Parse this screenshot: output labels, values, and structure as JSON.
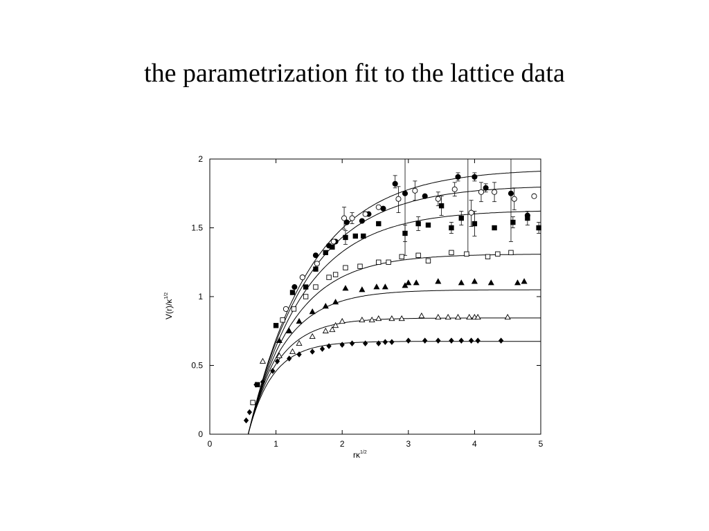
{
  "slide": {
    "title": "the parametrization fit to the lattice data"
  },
  "chart_data": {
    "type": "scatter",
    "title": "",
    "xlabel": "rκ",
    "xlabel_sup": "1/2",
    "ylabel": "V(r)/κ",
    "ylabel_sup": "1/2",
    "xlim": [
      0,
      5
    ],
    "ylim": [
      0,
      2
    ],
    "xticks": [
      "0",
      "1",
      "2",
      "3",
      "4",
      "5"
    ],
    "yticks": [
      "0",
      "0.5",
      "1",
      "1.5",
      "2"
    ],
    "xtick_values": [
      0,
      1,
      2,
      3,
      4,
      5
    ],
    "ytick_values": [
      0,
      0.5,
      1,
      1.5,
      2
    ],
    "grid": false,
    "fit_curves": [
      {
        "asymptote": 1.93,
        "x0": 0.58,
        "rate": 1.05
      },
      {
        "asymptote": 1.81,
        "x0": 0.58,
        "rate": 1.1
      },
      {
        "asymptote": 1.63,
        "x0": 0.58,
        "rate": 1.18
      },
      {
        "asymptote": 1.31,
        "x0": 0.58,
        "rate": 1.45
      },
      {
        "asymptote": 1.05,
        "x0": 0.58,
        "rate": 1.8
      },
      {
        "asymptote": 0.845,
        "x0": 0.58,
        "rate": 2.2
      },
      {
        "asymptote": 0.675,
        "x0": 0.58,
        "rate": 2.7
      }
    ],
    "series": [
      {
        "marker": "filled-circle",
        "points": [
          [
            1.28,
            1.07
          ],
          [
            1.4,
            1.14
          ],
          [
            1.6,
            1.3
          ],
          [
            1.8,
            1.37
          ],
          [
            1.9,
            1.4
          ],
          [
            2.07,
            1.54
          ],
          [
            2.3,
            1.55
          ],
          [
            2.4,
            1.6
          ],
          [
            2.62,
            1.64
          ],
          [
            2.8,
            1.82
          ],
          [
            2.95,
            1.75
          ],
          [
            3.25,
            1.73
          ],
          [
            3.75,
            1.87
          ],
          [
            4.0,
            1.87
          ],
          [
            4.17,
            1.79
          ],
          [
            4.55,
            1.75
          ],
          [
            4.8,
            1.59
          ]
        ]
      },
      {
        "marker": "open-circle",
        "points": [
          [
            1.15,
            0.91
          ],
          [
            1.4,
            1.14
          ],
          [
            1.62,
            1.24
          ],
          [
            1.87,
            1.4
          ],
          [
            2.03,
            1.57
          ],
          [
            2.15,
            1.57
          ],
          [
            2.35,
            1.6
          ],
          [
            2.55,
            1.65
          ],
          [
            2.85,
            1.71
          ],
          [
            3.1,
            1.77
          ],
          [
            3.45,
            1.71
          ],
          [
            3.7,
            1.78
          ],
          [
            3.95,
            1.61
          ],
          [
            4.1,
            1.76
          ],
          [
            4.3,
            1.76
          ],
          [
            4.6,
            1.71
          ],
          [
            4.9,
            1.73
          ]
        ]
      },
      {
        "marker": "filled-square",
        "points": [
          [
            0.72,
            0.36
          ],
          [
            1.0,
            0.79
          ],
          [
            1.25,
            1.03
          ],
          [
            1.45,
            1.07
          ],
          [
            1.6,
            1.2
          ],
          [
            1.75,
            1.32
          ],
          [
            1.85,
            1.36
          ],
          [
            2.05,
            1.43
          ],
          [
            2.2,
            1.44
          ],
          [
            2.32,
            1.44
          ],
          [
            2.55,
            1.53
          ],
          [
            2.95,
            1.46
          ],
          [
            3.15,
            1.53
          ],
          [
            3.3,
            1.52
          ],
          [
            3.5,
            1.66
          ],
          [
            3.65,
            1.5
          ],
          [
            3.8,
            1.57
          ],
          [
            4.0,
            1.53
          ],
          [
            4.3,
            1.5
          ],
          [
            4.58,
            1.54
          ],
          [
            4.8,
            1.57
          ],
          [
            4.97,
            1.5
          ]
        ]
      },
      {
        "marker": "open-square",
        "points": [
          [
            0.65,
            0.23
          ],
          [
            1.1,
            0.83
          ],
          [
            1.27,
            0.91
          ],
          [
            1.45,
            1.0
          ],
          [
            1.6,
            1.07
          ],
          [
            1.8,
            1.14
          ],
          [
            1.9,
            1.16
          ],
          [
            2.05,
            1.21
          ],
          [
            2.27,
            1.22
          ],
          [
            2.55,
            1.25
          ],
          [
            2.7,
            1.25
          ],
          [
            2.9,
            1.29
          ],
          [
            3.15,
            1.3
          ],
          [
            3.3,
            1.26
          ],
          [
            3.65,
            1.32
          ],
          [
            3.88,
            1.31
          ],
          [
            4.2,
            1.29
          ],
          [
            4.35,
            1.31
          ],
          [
            4.55,
            1.32
          ]
        ]
      },
      {
        "marker": "filled-triangle",
        "points": [
          [
            1.05,
            0.68
          ],
          [
            1.2,
            0.75
          ],
          [
            1.35,
            0.82
          ],
          [
            1.55,
            0.89
          ],
          [
            1.75,
            0.93
          ],
          [
            1.9,
            0.96
          ],
          [
            2.05,
            1.06
          ],
          [
            2.3,
            1.05
          ],
          [
            2.52,
            1.07
          ],
          [
            2.65,
            1.07
          ],
          [
            2.95,
            1.08
          ],
          [
            3.0,
            1.1
          ],
          [
            3.12,
            1.1
          ],
          [
            3.45,
            1.11
          ],
          [
            3.8,
            1.1
          ],
          [
            4.0,
            1.11
          ],
          [
            4.25,
            1.1
          ],
          [
            4.65,
            1.1
          ],
          [
            4.75,
            1.11
          ]
        ]
      },
      {
        "marker": "open-triangle",
        "points": [
          [
            0.8,
            0.53
          ],
          [
            1.05,
            0.57
          ],
          [
            1.25,
            0.6
          ],
          [
            1.35,
            0.66
          ],
          [
            1.55,
            0.71
          ],
          [
            1.75,
            0.75
          ],
          [
            1.85,
            0.76
          ],
          [
            1.9,
            0.79
          ],
          [
            2.0,
            0.82
          ],
          [
            2.3,
            0.83
          ],
          [
            2.45,
            0.83
          ],
          [
            2.55,
            0.84
          ],
          [
            2.75,
            0.84
          ],
          [
            2.9,
            0.84
          ],
          [
            3.2,
            0.86
          ],
          [
            3.45,
            0.85
          ],
          [
            3.6,
            0.85
          ],
          [
            3.75,
            0.85
          ],
          [
            3.92,
            0.85
          ],
          [
            4.0,
            0.85
          ],
          [
            4.05,
            0.85
          ],
          [
            4.5,
            0.85
          ]
        ]
      },
      {
        "marker": "filled-diamond",
        "points": [
          [
            0.55,
            0.1
          ],
          [
            0.6,
            0.16
          ],
          [
            0.7,
            0.36
          ],
          [
            0.8,
            0.38
          ],
          [
            0.95,
            0.46
          ],
          [
            1.02,
            0.53
          ],
          [
            1.2,
            0.55
          ],
          [
            1.35,
            0.58
          ],
          [
            1.55,
            0.6
          ],
          [
            1.7,
            0.62
          ],
          [
            1.8,
            0.64
          ],
          [
            2.0,
            0.65
          ],
          [
            2.15,
            0.66
          ],
          [
            2.35,
            0.66
          ],
          [
            2.55,
            0.66
          ],
          [
            2.65,
            0.67
          ],
          [
            2.75,
            0.67
          ],
          [
            3.0,
            0.68
          ],
          [
            3.25,
            0.68
          ],
          [
            3.45,
            0.68
          ],
          [
            3.65,
            0.68
          ],
          [
            3.8,
            0.68
          ],
          [
            3.95,
            0.68
          ],
          [
            4.05,
            0.68
          ],
          [
            4.4,
            0.68
          ]
        ]
      }
    ],
    "errorbars": [
      [
        2.8,
        1.79,
        1.88
      ],
      [
        3.75,
        1.84,
        1.9
      ],
      [
        4.0,
        1.84,
        1.9
      ],
      [
        4.17,
        1.76,
        1.82
      ],
      [
        4.8,
        1.56,
        1.62
      ],
      [
        2.03,
        1.49,
        1.65
      ],
      [
        2.15,
        1.53,
        1.61
      ],
      [
        2.85,
        1.61,
        1.8
      ],
      [
        3.1,
        1.7,
        1.84
      ],
      [
        3.45,
        1.66,
        1.76
      ],
      [
        3.7,
        1.73,
        1.83
      ],
      [
        3.95,
        1.51,
        1.7
      ],
      [
        4.1,
        1.69,
        1.83
      ],
      [
        4.3,
        1.69,
        1.83
      ],
      [
        4.6,
        1.63,
        1.79
      ],
      [
        2.05,
        1.38,
        1.48
      ],
      [
        2.95,
        1.4,
        1.52
      ],
      [
        3.15,
        1.48,
        1.58
      ],
      [
        3.5,
        1.59,
        1.73
      ],
      [
        3.65,
        1.46,
        1.54
      ],
      [
        3.8,
        1.52,
        1.62
      ],
      [
        4.0,
        1.44,
        1.62
      ],
      [
        4.58,
        1.5,
        1.58
      ],
      [
        4.8,
        1.52,
        1.62
      ],
      [
        4.97,
        1.46,
        1.54
      ]
    ],
    "long_errorbars": [
      [
        2.95,
        1.3,
        2.0
      ],
      [
        3.9,
        1.3,
        2.0
      ],
      [
        4.55,
        1.4,
        2.0
      ]
    ]
  }
}
